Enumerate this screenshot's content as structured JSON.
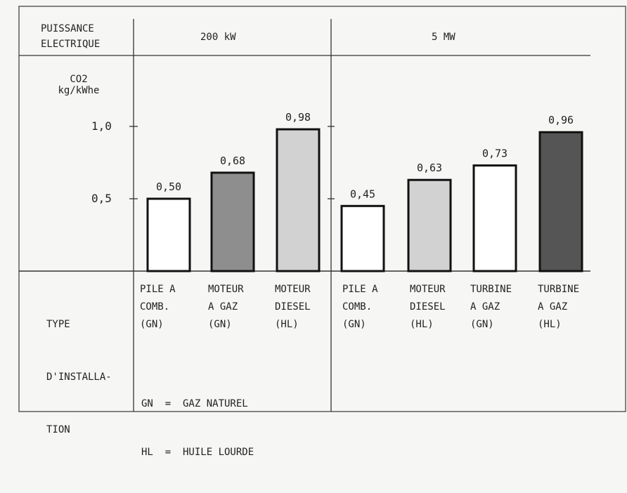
{
  "header": {
    "row_label": [
      "PUISSANCE",
      "ELECTRIQUE"
    ],
    "groups": [
      "200 kW",
      "5 MW"
    ]
  },
  "yaxis": {
    "label": [
      "CO2",
      "kg/kWhe"
    ],
    "ticks": [
      {
        "value": 0.5,
        "label": "0,5"
      },
      {
        "value": 1.0,
        "label": "1,0"
      }
    ]
  },
  "footer": {
    "row_label": [
      "TYPE",
      "D'INSTALLA-",
      "TION"
    ],
    "legend": [
      "GN  =  GAZ NATUREL",
      "HL  =  HUILE LOURDE"
    ]
  },
  "chart_data": {
    "type": "bar",
    "title": "",
    "xlabel": "TYPE D'INSTALLATION",
    "ylabel": "CO2 kg/kWhe",
    "ylim": [
      0,
      1.0
    ],
    "grid": false,
    "groups": [
      "200 kW",
      "5 MW"
    ],
    "categories": [
      [
        "PILE A",
        "COMB.",
        "(GN)"
      ],
      [
        "MOTEUR",
        "A GAZ",
        "(GN)"
      ],
      [
        "MOTEUR",
        "DIESEL",
        "(HL)"
      ],
      [
        "PILE A",
        "COMB.",
        "(GN)"
      ],
      [
        "MOTEUR",
        "DIESEL",
        "(HL)"
      ],
      [
        "TURBINE",
        "A GAZ",
        "(GN)"
      ],
      [
        "TURBINE",
        "A GAZ",
        "(HL)"
      ]
    ],
    "group_of_bar": [
      "200 kW",
      "200 kW",
      "200 kW",
      "5 MW",
      "5 MW",
      "5 MW",
      "5 MW"
    ],
    "values": [
      0.5,
      0.68,
      0.98,
      0.45,
      0.63,
      0.73,
      0.96
    ],
    "value_labels": [
      "0,50",
      "0,68",
      "0,98",
      "0,45",
      "0,63",
      "0,73",
      "0,96"
    ],
    "fills": [
      "#ffffff",
      "#8e8e8e",
      "#d2d2d2",
      "#ffffff",
      "#d2d2d2",
      "#ffffff",
      "#555555"
    ]
  }
}
